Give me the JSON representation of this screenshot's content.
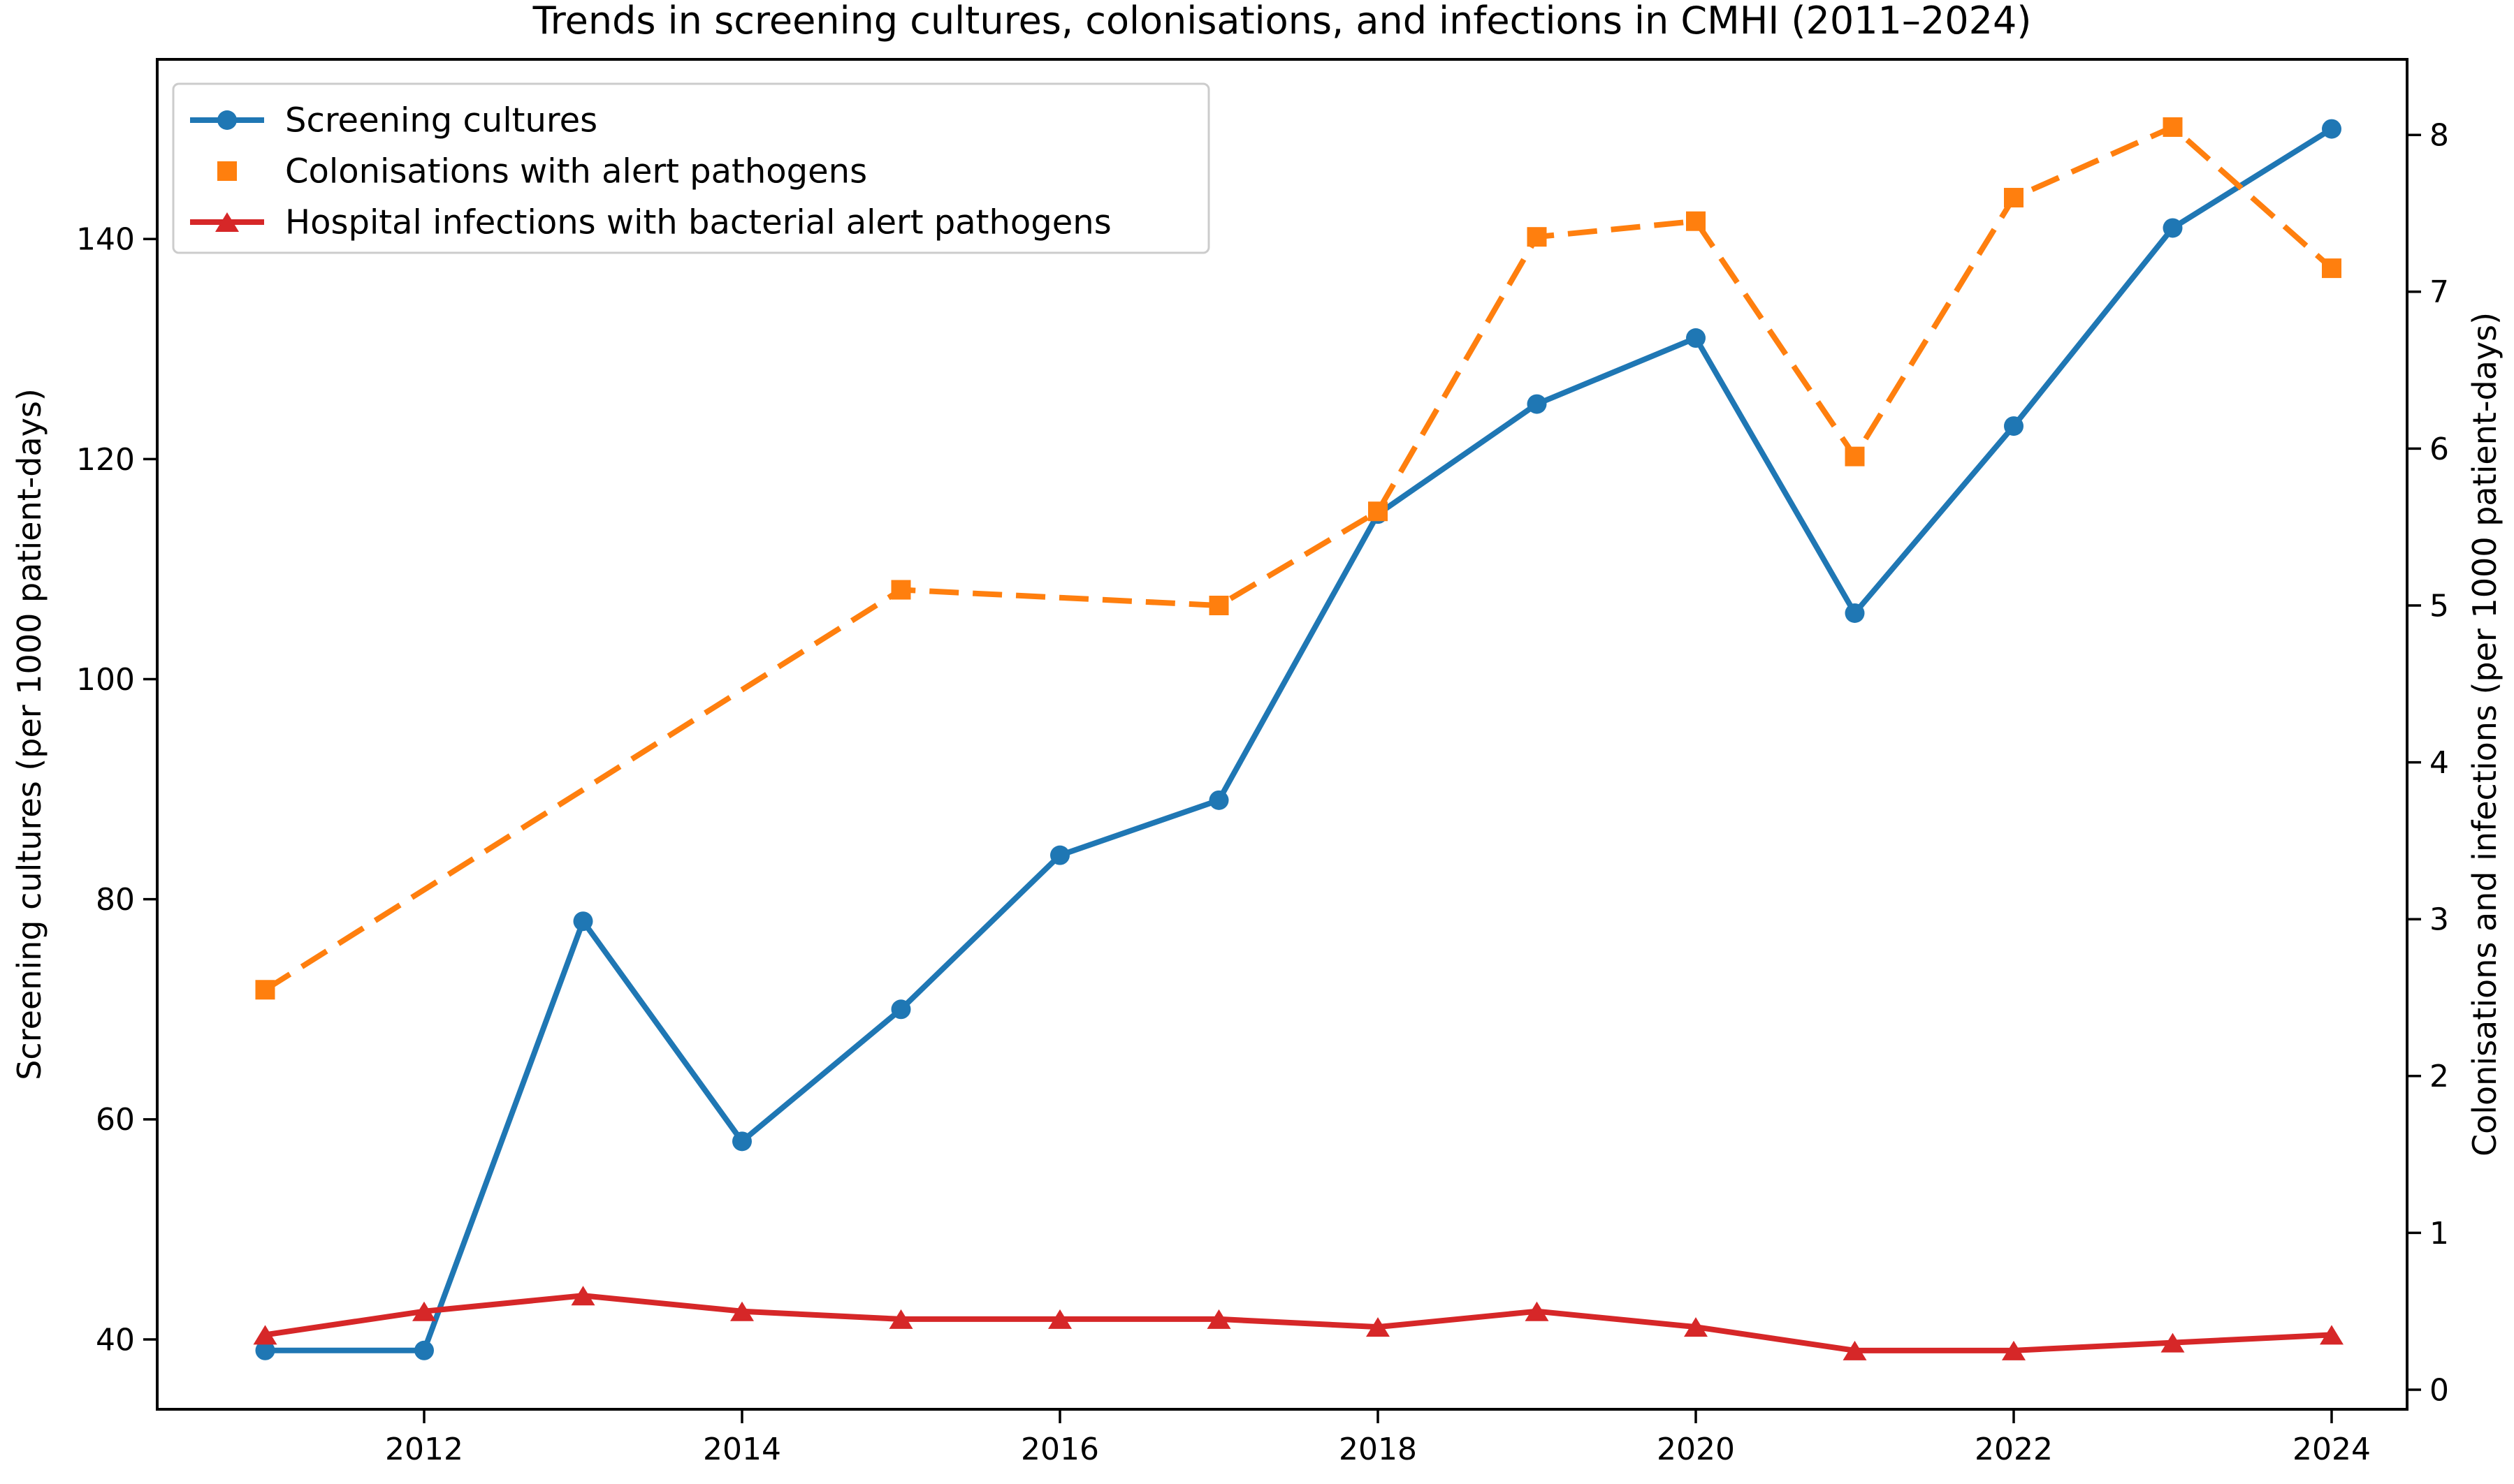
{
  "chart_data": {
    "type": "line",
    "title": "Trends in screening cultures, colonisations, and infections in CMHI (2011–2024)",
    "x_ticks": [
      "2012",
      "2014",
      "2016",
      "2018",
      "2020",
      "2022",
      "2024"
    ],
    "x_range": [
      2010.3,
      2024.7
    ],
    "grid": "off",
    "left_axis": {
      "label": "Screening cultures (per 1000 patient-days)",
      "ticks": [
        "40",
        "60",
        "80",
        "100",
        "120",
        "140"
      ],
      "tick_values": [
        40,
        60,
        80,
        100,
        120,
        140
      ],
      "range": [
        33.6,
        156.3
      ]
    },
    "right_axis": {
      "label": "Colonisations and infections (per 1000 patient-days)",
      "ticks": [
        "0",
        "1",
        "2",
        "3",
        "4",
        "5",
        "6",
        "7",
        "8"
      ],
      "tick_values": [
        0,
        1,
        2,
        3,
        4,
        5,
        6,
        7,
        8
      ],
      "range": [
        -0.12,
        8.48
      ]
    },
    "legend": {
      "position": "upper-left",
      "entries": [
        "Screening cultures",
        "Colonisations with alert pathogens",
        "Hospital infections with bacterial alert pathogens"
      ]
    },
    "series": [
      {
        "name": "Screening cultures",
        "axis": "left",
        "color": "#1f77b4",
        "line_style": "solid",
        "marker": "circle",
        "legend_sample": "line-marker",
        "x": [
          2011,
          2012,
          2013,
          2014,
          2015,
          2016,
          2017,
          2018,
          2019,
          2020,
          2021,
          2022,
          2023,
          2024
        ],
        "values": [
          39,
          39,
          78,
          58,
          70,
          84,
          89,
          115,
          125,
          131,
          106,
          123,
          141,
          150
        ]
      },
      {
        "name": "Colonisations with alert pathogens",
        "axis": "right",
        "color": "#ff7f0e",
        "line_style": "dashed",
        "marker": "square",
        "legend_sample": "marker",
        "x": [
          2011,
          2015,
          2017,
          2018,
          2019,
          2020,
          2021,
          2022,
          2023,
          2024
        ],
        "values": [
          2.55,
          5.1,
          5.0,
          5.6,
          7.35,
          7.45,
          5.95,
          7.6,
          8.05,
          7.15
        ]
      },
      {
        "name": "Hospital infections with bacterial alert pathogens",
        "axis": "right",
        "color": "#d62728",
        "line_style": "solid",
        "marker": "triangle",
        "legend_sample": "line-marker",
        "x": [
          2011,
          2012,
          2013,
          2014,
          2015,
          2016,
          2017,
          2018,
          2019,
          2020,
          2021,
          2022,
          2023,
          2024
        ],
        "values": [
          0.35,
          0.5,
          0.6,
          0.5,
          0.45,
          0.45,
          0.45,
          0.4,
          0.5,
          0.4,
          0.25,
          0.25,
          0.3,
          0.35
        ]
      }
    ]
  }
}
